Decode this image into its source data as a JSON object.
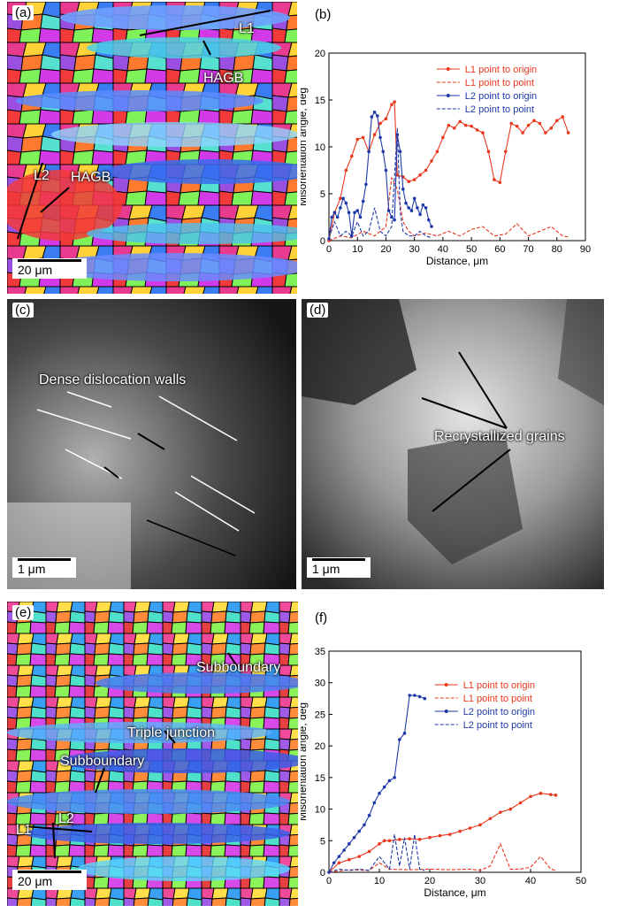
{
  "panels": {
    "a": {
      "letter": "(a)",
      "labels": [
        "L1",
        "HAGB",
        "L2",
        "HAGB"
      ],
      "scalebar": "20 μm"
    },
    "b": {
      "letter": "(b)"
    },
    "c": {
      "letter": "(c)",
      "label": "Dense dislocation walls",
      "scalebar": "1 μm"
    },
    "d": {
      "letter": "(d)",
      "label": "Recrystallized grains",
      "scalebar": "1 μm"
    },
    "e": {
      "letter": "(e)",
      "labels": [
        "Subboundary",
        "Triple junction",
        "Subboundary",
        "L1",
        "L2"
      ],
      "scalebar": "20 μm"
    },
    "f": {
      "letter": "(f)"
    }
  },
  "colors": {
    "L1": "#e8371d",
    "L2": "#1f3aa8"
  },
  "chart_data": [
    {
      "type": "line",
      "panel": "b",
      "xlabel": "Distance, μm",
      "ylabel": "Misorientation angle, deg",
      "xlim": [
        0,
        90
      ],
      "ylim": [
        0,
        20
      ],
      "xticks": [
        0,
        10,
        20,
        30,
        40,
        50,
        60,
        70,
        80,
        90
      ],
      "yticks": [
        0,
        5,
        10,
        15,
        20
      ],
      "legend_position": "top-right",
      "series": [
        {
          "name": "L1 point to origin",
          "color": "#e8371d",
          "style": "solid-marker",
          "x": [
            0,
            2,
            4,
            6,
            8,
            10,
            12,
            14,
            16,
            18,
            20,
            22,
            23,
            24,
            26,
            28,
            30,
            32,
            34,
            36,
            38,
            40,
            42,
            44,
            46,
            48,
            50,
            52,
            54,
            56,
            58,
            60,
            62,
            64,
            66,
            68,
            70,
            72,
            74,
            76,
            78,
            80,
            82,
            84
          ],
          "y": [
            0,
            3,
            4.5,
            7.5,
            9,
            10.8,
            11,
            9.5,
            11.3,
            12.5,
            13,
            14.5,
            14.8,
            7,
            6.8,
            6.3,
            6.5,
            7,
            7.5,
            8.5,
            9.5,
            11,
            12.3,
            12,
            12.7,
            12.3,
            12.2,
            11.8,
            11.5,
            9.5,
            6.5,
            6.2,
            9.5,
            12.5,
            12.2,
            11.5,
            12.3,
            12.8,
            12.5,
            11.5,
            12,
            12.8,
            13.2,
            11.5
          ]
        },
        {
          "name": "L1 point to point",
          "color": "#e8371d",
          "style": "dashed",
          "x": [
            0,
            4,
            8,
            12,
            16,
            20,
            22,
            24,
            26,
            28,
            30,
            34,
            38,
            42,
            46,
            50,
            54,
            58,
            62,
            66,
            70,
            74,
            78,
            82,
            84
          ],
          "y": [
            0,
            0.5,
            0.3,
            1,
            0.5,
            1.5,
            6.7,
            5.5,
            2,
            1,
            0.5,
            0.8,
            0.5,
            1,
            0.5,
            1.2,
            1.5,
            0.5,
            0.7,
            1.8,
            0.5,
            1,
            1.5,
            0.5,
            0.4
          ]
        },
        {
          "name": "L2 point to origin",
          "color": "#1f3aa8",
          "style": "solid-marker",
          "x": [
            0,
            1,
            2,
            3,
            4,
            5,
            6,
            7,
            8,
            9,
            10,
            11,
            12,
            13,
            14,
            15,
            16,
            17,
            18,
            19,
            20,
            21,
            22,
            23,
            24,
            25,
            26,
            27,
            28,
            29,
            30,
            31,
            32,
            33,
            34,
            35,
            36
          ],
          "y": [
            0.2,
            2.5,
            3,
            2.5,
            3.5,
            4.5,
            4,
            3,
            0.5,
            3,
            3.2,
            2.5,
            4.2,
            6,
            9.5,
            13.2,
            13.7,
            13.3,
            11,
            9.5,
            7.5,
            3.2,
            2.5,
            2.2,
            11.3,
            9.5,
            5.5,
            4,
            3.5,
            3.2,
            4.5,
            3.5,
            2.8,
            3.8,
            3.5,
            2.2,
            1.5
          ]
        },
        {
          "name": "L2 point to point",
          "color": "#1f3aa8",
          "style": "dashed",
          "x": [
            0,
            2,
            4,
            6,
            8,
            10,
            12,
            14,
            16,
            18,
            20,
            22,
            24,
            25,
            26,
            28,
            30,
            32,
            34,
            36
          ],
          "y": [
            0.3,
            2,
            0.5,
            1,
            0.5,
            2,
            0.5,
            1,
            3.5,
            1,
            0.5,
            1.5,
            12,
            3,
            1,
            0.5,
            0.5,
            1,
            0.5,
            0.3
          ]
        }
      ]
    },
    {
      "type": "line",
      "panel": "f",
      "xlabel": "Distance, μm",
      "ylabel": "Misorientation angle, deg",
      "xlim": [
        0,
        50
      ],
      "ylim": [
        0,
        35
      ],
      "xticks": [
        0,
        10,
        20,
        30,
        40,
        50
      ],
      "yticks": [
        0,
        5,
        10,
        15,
        20,
        25,
        30,
        35
      ],
      "legend_position": "top-right",
      "series": [
        {
          "name": "L1 point to origin",
          "color": "#e8371d",
          "style": "solid-marker",
          "x": [
            0,
            2,
            4,
            6,
            8,
            10,
            11,
            12,
            14,
            16,
            18,
            20,
            22,
            24,
            26,
            28,
            30,
            32,
            34,
            36,
            38,
            40,
            42,
            44,
            45
          ],
          "y": [
            0,
            1.5,
            2,
            2.5,
            3.3,
            4.5,
            5,
            5,
            5.2,
            5.3,
            5.2,
            5.5,
            5.8,
            6,
            6.5,
            7,
            7.5,
            8.5,
            9.5,
            10,
            11,
            12,
            12.5,
            12.3,
            12.2
          ]
        },
        {
          "name": "L1 point to point",
          "color": "#e8371d",
          "style": "dashed",
          "x": [
            0,
            4,
            8,
            10,
            12,
            16,
            20,
            24,
            28,
            30,
            32,
            34,
            36,
            38,
            40,
            42,
            44,
            45
          ],
          "y": [
            0,
            0.4,
            0.3,
            1.5,
            0.5,
            0.4,
            0.5,
            0.4,
            0.5,
            0.3,
            1,
            4.5,
            0.5,
            0.5,
            0.8,
            2.5,
            0.5,
            0.3
          ]
        },
        {
          "name": "L2 point to origin",
          "color": "#1f3aa8",
          "style": "solid-marker",
          "x": [
            0,
            1,
            2,
            3,
            4,
            5,
            6,
            7,
            8,
            9,
            10,
            11,
            12,
            13,
            14,
            15,
            16,
            17,
            18,
            19
          ],
          "y": [
            0,
            1.5,
            2.5,
            3.5,
            4.5,
            5.5,
            6.5,
            7.5,
            9,
            11,
            12.5,
            13.5,
            14.5,
            15,
            21,
            22,
            28,
            28,
            27.8,
            27.5
          ]
        },
        {
          "name": "L2 point to point",
          "color": "#1f3aa8",
          "style": "dashed",
          "x": [
            0,
            2,
            4,
            6,
            8,
            10,
            12,
            13,
            14,
            15,
            16,
            17,
            18,
            19
          ],
          "y": [
            0,
            0.5,
            0.3,
            0.5,
            0.3,
            2.5,
            0.5,
            6,
            1,
            5.5,
            0.5,
            6,
            0.5,
            0.3
          ]
        }
      ]
    }
  ]
}
